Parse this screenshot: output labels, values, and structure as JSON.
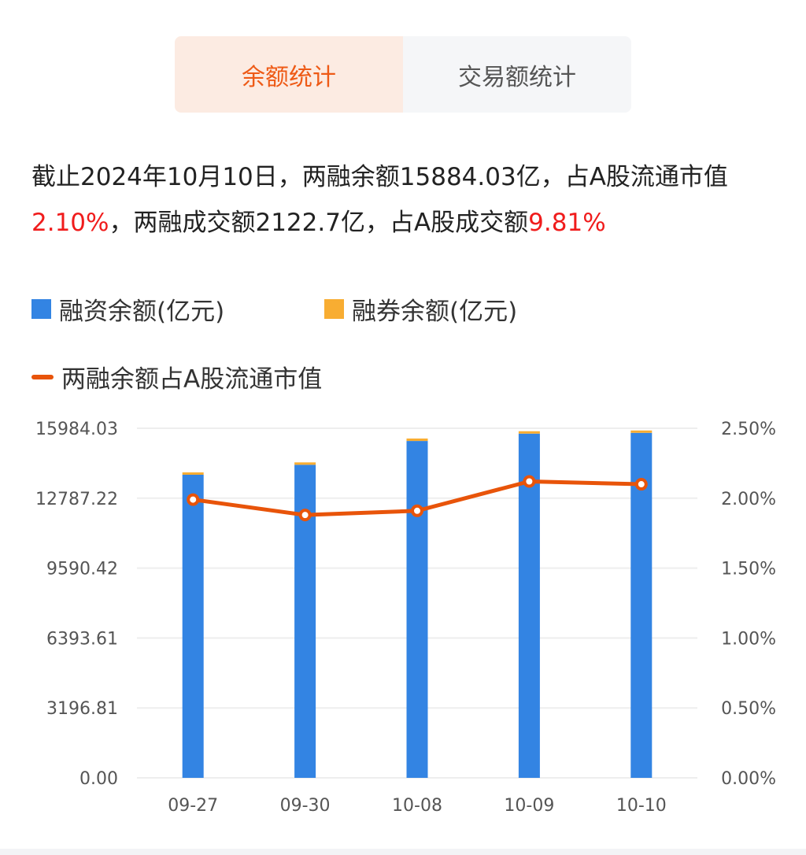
{
  "tabs": [
    {
      "label": "余额统计",
      "active": true
    },
    {
      "label": "交易额统计",
      "active": false
    }
  ],
  "summary": {
    "p1": "截止2024年10月10日，两融余额15884.03亿，占A股流通市值",
    "v1": "2.10%",
    "p2": "，两融成交额2122.7亿，占A股成交额",
    "v2": "9.81%"
  },
  "colors": {
    "financing": "#3384e3",
    "securities": "#f8ad32",
    "ratio": "#e8540a",
    "accent": "#ee5a16",
    "highlight": "#f01c1c"
  },
  "chart_data": {
    "type": "bar",
    "categories": [
      "09-27",
      "09-30",
      "10-08",
      "10-09",
      "10-10"
    ],
    "series": [
      {
        "name": "融资余额(亿元)",
        "type": "bar",
        "stack": "total",
        "values": [
          13860,
          14315,
          15405,
          15740,
          15776
        ]
      },
      {
        "name": "融券余额(亿元)",
        "type": "bar",
        "stack": "total",
        "values": [
          108,
          110,
          111,
          110,
          108
        ]
      },
      {
        "name": "两融余额占A股流通市值",
        "type": "line",
        "axis": "right",
        "values": [
          1.99,
          1.88,
          1.91,
          2.12,
          2.1
        ]
      }
    ],
    "yleft": {
      "ticks": [
        "0.00",
        "3196.81",
        "6393.61",
        "9590.42",
        "12787.22",
        "15984.03"
      ],
      "lim": [
        0,
        15984.03
      ]
    },
    "yright": {
      "ticks": [
        "0.00%",
        "0.50%",
        "1.00%",
        "1.50%",
        "2.00%",
        "2.50%"
      ],
      "lim": [
        0,
        2.5
      ]
    },
    "grid": true,
    "legend": "top-left"
  }
}
